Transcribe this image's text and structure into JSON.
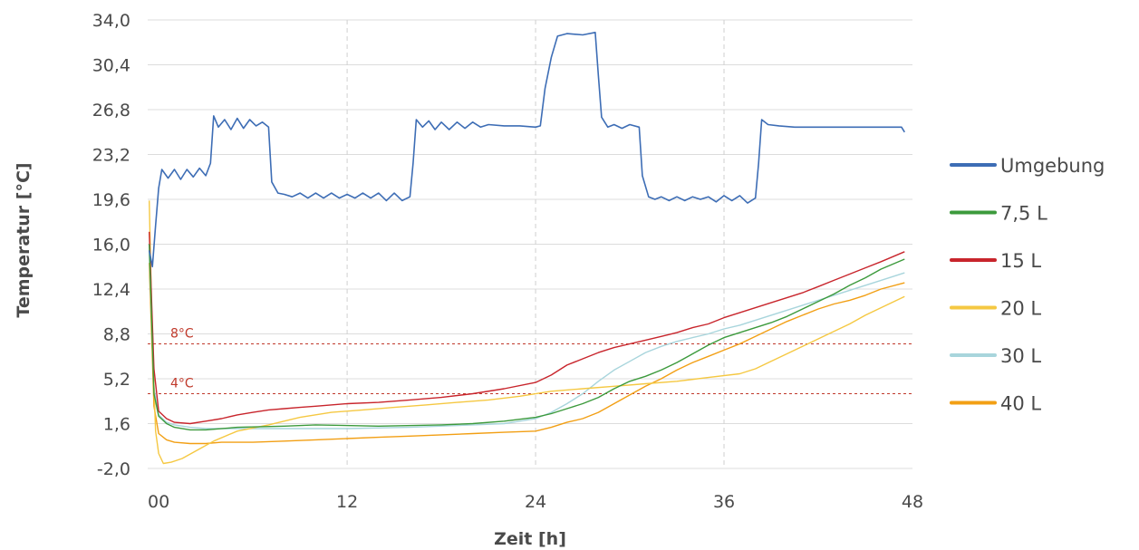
{
  "chart_data": {
    "type": "line",
    "title": "",
    "xlabel": "Zeit [h]",
    "ylabel": "Temperatur [°C]",
    "xlim": [
      -0.7,
      48
    ],
    "ylim": [
      -2.0,
      34.0
    ],
    "x_ticks": [
      0,
      12,
      24,
      36,
      48
    ],
    "x_tick_labels": [
      "00",
      "12",
      "24",
      "36",
      "48"
    ],
    "y_ticks": [
      -2.0,
      1.6,
      5.2,
      8.8,
      12.4,
      16.0,
      19.6,
      23.2,
      26.8,
      30.4,
      34.0
    ],
    "y_tick_labels": [
      "-2,0",
      "1,6",
      "5,2",
      "8,8",
      "12,4",
      "16,0",
      "19,6",
      "23,2",
      "26,8",
      "30,4",
      "34,0"
    ],
    "grid": "vertical dashed gridlines at x ticks, horizontal solid gridlines at y ticks",
    "legend_position": "right",
    "reference_lines": [
      {
        "label": "8°C",
        "y": 8.0,
        "color": "#c0392b"
      },
      {
        "label": "4°C",
        "y": 4.0,
        "color": "#c0392b"
      }
    ],
    "series": [
      {
        "name": "Umgebung",
        "color": "#3d6db5",
        "width": 1.6,
        "points": [
          [
            -0.6,
            15.5
          ],
          [
            -0.4,
            14.2
          ],
          [
            -0.2,
            17.5
          ],
          [
            0.0,
            20.5
          ],
          [
            0.2,
            22.0
          ],
          [
            0.6,
            21.3
          ],
          [
            1.0,
            22.0
          ],
          [
            1.4,
            21.2
          ],
          [
            1.8,
            22.0
          ],
          [
            2.2,
            21.4
          ],
          [
            2.6,
            22.1
          ],
          [
            3.0,
            21.5
          ],
          [
            3.3,
            22.5
          ],
          [
            3.5,
            26.3
          ],
          [
            3.8,
            25.4
          ],
          [
            4.2,
            26.0
          ],
          [
            4.6,
            25.2
          ],
          [
            5.0,
            26.1
          ],
          [
            5.4,
            25.3
          ],
          [
            5.8,
            26.0
          ],
          [
            6.2,
            25.5
          ],
          [
            6.6,
            25.8
          ],
          [
            7.0,
            25.4
          ],
          [
            7.2,
            21.0
          ],
          [
            7.6,
            20.1
          ],
          [
            8.0,
            20.0
          ],
          [
            8.5,
            19.8
          ],
          [
            9.0,
            20.1
          ],
          [
            9.5,
            19.7
          ],
          [
            10.0,
            20.1
          ],
          [
            10.5,
            19.7
          ],
          [
            11.0,
            20.1
          ],
          [
            11.5,
            19.7
          ],
          [
            12.0,
            20.0
          ],
          [
            12.5,
            19.7
          ],
          [
            13.0,
            20.1
          ],
          [
            13.5,
            19.7
          ],
          [
            14.0,
            20.1
          ],
          [
            14.5,
            19.5
          ],
          [
            15.0,
            20.1
          ],
          [
            15.5,
            19.5
          ],
          [
            16.0,
            19.8
          ],
          [
            16.2,
            22.5
          ],
          [
            16.4,
            26.0
          ],
          [
            16.8,
            25.4
          ],
          [
            17.2,
            25.9
          ],
          [
            17.6,
            25.2
          ],
          [
            18.0,
            25.8
          ],
          [
            18.5,
            25.2
          ],
          [
            19.0,
            25.8
          ],
          [
            19.5,
            25.3
          ],
          [
            20.0,
            25.8
          ],
          [
            20.5,
            25.4
          ],
          [
            21.0,
            25.6
          ],
          [
            22.0,
            25.5
          ],
          [
            23.0,
            25.5
          ],
          [
            24.0,
            25.4
          ],
          [
            24.3,
            25.5
          ],
          [
            24.6,
            28.5
          ],
          [
            25.0,
            31.0
          ],
          [
            25.4,
            32.7
          ],
          [
            26.0,
            32.9
          ],
          [
            27.0,
            32.8
          ],
          [
            27.8,
            33.0
          ],
          [
            28.0,
            29.5
          ],
          [
            28.2,
            26.2
          ],
          [
            28.6,
            25.4
          ],
          [
            29.0,
            25.6
          ],
          [
            29.5,
            25.3
          ],
          [
            30.0,
            25.6
          ],
          [
            30.6,
            25.4
          ],
          [
            30.8,
            21.5
          ],
          [
            31.2,
            19.8
          ],
          [
            31.6,
            19.6
          ],
          [
            32.0,
            19.8
          ],
          [
            32.5,
            19.5
          ],
          [
            33.0,
            19.8
          ],
          [
            33.5,
            19.5
          ],
          [
            34.0,
            19.8
          ],
          [
            34.5,
            19.6
          ],
          [
            35.0,
            19.8
          ],
          [
            35.5,
            19.4
          ],
          [
            36.0,
            19.9
          ],
          [
            36.5,
            19.5
          ],
          [
            37.0,
            19.9
          ],
          [
            37.5,
            19.3
          ],
          [
            38.0,
            19.7
          ],
          [
            38.2,
            22.5
          ],
          [
            38.4,
            26.0
          ],
          [
            38.8,
            25.6
          ],
          [
            39.5,
            25.5
          ],
          [
            40.5,
            25.4
          ],
          [
            42.0,
            25.4
          ],
          [
            44.0,
            25.4
          ],
          [
            46.0,
            25.4
          ],
          [
            47.3,
            25.4
          ],
          [
            47.5,
            25.0
          ]
        ]
      },
      {
        "name": "7,5 L",
        "color": "#3c9a3c",
        "width": 1.4,
        "points": [
          [
            -0.6,
            16.0
          ],
          [
            -0.3,
            4.0
          ],
          [
            0.0,
            2.2
          ],
          [
            0.5,
            1.6
          ],
          [
            1.0,
            1.3
          ],
          [
            2.0,
            1.1
          ],
          [
            3.0,
            1.1
          ],
          [
            5.0,
            1.3
          ],
          [
            8.0,
            1.4
          ],
          [
            10.0,
            1.5
          ],
          [
            14.0,
            1.4
          ],
          [
            18.0,
            1.5
          ],
          [
            20.0,
            1.6
          ],
          [
            22.0,
            1.8
          ],
          [
            24.0,
            2.1
          ],
          [
            25.0,
            2.4
          ],
          [
            26.0,
            2.8
          ],
          [
            27.0,
            3.2
          ],
          [
            28.0,
            3.7
          ],
          [
            29.0,
            4.4
          ],
          [
            30.0,
            5.0
          ],
          [
            31.0,
            5.4
          ],
          [
            32.0,
            5.9
          ],
          [
            33.0,
            6.5
          ],
          [
            34.0,
            7.2
          ],
          [
            35.0,
            7.9
          ],
          [
            36.0,
            8.5
          ],
          [
            37.0,
            8.9
          ],
          [
            38.0,
            9.3
          ],
          [
            39.0,
            9.7
          ],
          [
            40.0,
            10.2
          ],
          [
            41.0,
            10.8
          ],
          [
            42.0,
            11.4
          ],
          [
            43.0,
            12.0
          ],
          [
            44.0,
            12.7
          ],
          [
            45.0,
            13.3
          ],
          [
            46.0,
            14.0
          ],
          [
            47.5,
            14.8
          ]
        ]
      },
      {
        "name": "15 L",
        "color": "#c8252c",
        "width": 1.4,
        "points": [
          [
            -0.6,
            17.0
          ],
          [
            -0.3,
            6.0
          ],
          [
            0.0,
            2.6
          ],
          [
            0.5,
            2.0
          ],
          [
            1.0,
            1.7
          ],
          [
            2.0,
            1.6
          ],
          [
            3.0,
            1.8
          ],
          [
            4.0,
            2.0
          ],
          [
            5.0,
            2.3
          ],
          [
            6.0,
            2.5
          ],
          [
            7.0,
            2.7
          ],
          [
            8.0,
            2.8
          ],
          [
            9.0,
            2.9
          ],
          [
            10.0,
            3.0
          ],
          [
            12.0,
            3.2
          ],
          [
            14.0,
            3.3
          ],
          [
            16.0,
            3.5
          ],
          [
            18.0,
            3.7
          ],
          [
            20.0,
            4.0
          ],
          [
            22.0,
            4.4
          ],
          [
            24.0,
            4.9
          ],
          [
            25.0,
            5.5
          ],
          [
            26.0,
            6.3
          ],
          [
            27.0,
            6.8
          ],
          [
            28.0,
            7.3
          ],
          [
            29.0,
            7.7
          ],
          [
            30.0,
            8.0
          ],
          [
            31.0,
            8.3
          ],
          [
            32.0,
            8.6
          ],
          [
            33.0,
            8.9
          ],
          [
            34.0,
            9.3
          ],
          [
            35.0,
            9.6
          ],
          [
            36.0,
            10.1
          ],
          [
            37.0,
            10.5
          ],
          [
            38.0,
            10.9
          ],
          [
            39.0,
            11.3
          ],
          [
            40.0,
            11.7
          ],
          [
            41.0,
            12.1
          ],
          [
            42.0,
            12.6
          ],
          [
            43.0,
            13.1
          ],
          [
            44.0,
            13.6
          ],
          [
            45.0,
            14.1
          ],
          [
            46.0,
            14.6
          ],
          [
            47.5,
            15.4
          ]
        ]
      },
      {
        "name": "20 L",
        "color": "#f5c842",
        "width": 1.4,
        "points": [
          [
            -0.6,
            19.5
          ],
          [
            -0.4,
            8.0
          ],
          [
            -0.2,
            1.0
          ],
          [
            0.0,
            -0.8
          ],
          [
            0.3,
            -1.6
          ],
          [
            0.8,
            -1.5
          ],
          [
            1.5,
            -1.2
          ],
          [
            2.5,
            -0.5
          ],
          [
            3.5,
            0.2
          ],
          [
            5.0,
            1.0
          ],
          [
            7.0,
            1.5
          ],
          [
            9.0,
            2.1
          ],
          [
            11.0,
            2.5
          ],
          [
            13.0,
            2.7
          ],
          [
            15.0,
            2.9
          ],
          [
            17.0,
            3.1
          ],
          [
            19.0,
            3.3
          ],
          [
            21.0,
            3.5
          ],
          [
            23.0,
            3.8
          ],
          [
            25.0,
            4.2
          ],
          [
            27.0,
            4.4
          ],
          [
            29.0,
            4.6
          ],
          [
            31.0,
            4.8
          ],
          [
            33.0,
            5.0
          ],
          [
            35.0,
            5.3
          ],
          [
            37.0,
            5.6
          ],
          [
            38.0,
            6.0
          ],
          [
            39.0,
            6.6
          ],
          [
            40.0,
            7.2
          ],
          [
            41.0,
            7.8
          ],
          [
            42.0,
            8.4
          ],
          [
            43.0,
            9.0
          ],
          [
            44.0,
            9.6
          ],
          [
            45.0,
            10.3
          ],
          [
            46.0,
            10.9
          ],
          [
            47.5,
            11.8
          ]
        ]
      },
      {
        "name": "30 L",
        "color": "#a8d5dc",
        "width": 1.4,
        "points": [
          [
            -0.6,
            15.5
          ],
          [
            -0.3,
            4.5
          ],
          [
            0.0,
            2.3
          ],
          [
            0.5,
            1.7
          ],
          [
            1.0,
            1.5
          ],
          [
            2.0,
            1.3
          ],
          [
            3.0,
            1.2
          ],
          [
            5.0,
            1.2
          ],
          [
            8.0,
            1.2
          ],
          [
            12.0,
            1.2
          ],
          [
            16.0,
            1.3
          ],
          [
            20.0,
            1.5
          ],
          [
            22.0,
            1.6
          ],
          [
            23.0,
            1.8
          ],
          [
            24.0,
            2.0
          ],
          [
            25.0,
            2.5
          ],
          [
            26.0,
            3.2
          ],
          [
            27.0,
            4.0
          ],
          [
            28.0,
            5.0
          ],
          [
            29.0,
            5.9
          ],
          [
            30.0,
            6.6
          ],
          [
            31.0,
            7.3
          ],
          [
            32.0,
            7.8
          ],
          [
            33.0,
            8.2
          ],
          [
            34.0,
            8.5
          ],
          [
            35.0,
            8.8
          ],
          [
            36.0,
            9.2
          ],
          [
            37.0,
            9.5
          ],
          [
            38.0,
            9.9
          ],
          [
            39.0,
            10.3
          ],
          [
            40.0,
            10.7
          ],
          [
            41.0,
            11.1
          ],
          [
            42.0,
            11.5
          ],
          [
            43.0,
            11.9
          ],
          [
            44.0,
            12.3
          ],
          [
            45.0,
            12.7
          ],
          [
            46.0,
            13.1
          ],
          [
            47.5,
            13.7
          ]
        ]
      },
      {
        "name": "40 L",
        "color": "#f29f14",
        "width": 1.4,
        "points": [
          [
            -0.6,
            14.5
          ],
          [
            -0.3,
            3.0
          ],
          [
            0.0,
            0.8
          ],
          [
            0.5,
            0.3
          ],
          [
            1.0,
            0.1
          ],
          [
            2.0,
            0.0
          ],
          [
            3.0,
            0.0
          ],
          [
            4.0,
            0.1
          ],
          [
            6.0,
            0.1
          ],
          [
            8.0,
            0.2
          ],
          [
            10.0,
            0.3
          ],
          [
            12.0,
            0.4
          ],
          [
            14.0,
            0.5
          ],
          [
            16.0,
            0.6
          ],
          [
            18.0,
            0.7
          ],
          [
            20.0,
            0.8
          ],
          [
            22.0,
            0.9
          ],
          [
            24.0,
            1.0
          ],
          [
            25.0,
            1.3
          ],
          [
            26.0,
            1.7
          ],
          [
            27.0,
            2.0
          ],
          [
            28.0,
            2.5
          ],
          [
            29.0,
            3.2
          ],
          [
            30.0,
            3.9
          ],
          [
            31.0,
            4.6
          ],
          [
            32.0,
            5.2
          ],
          [
            33.0,
            5.9
          ],
          [
            34.0,
            6.5
          ],
          [
            35.0,
            7.0
          ],
          [
            36.0,
            7.5
          ],
          [
            37.0,
            8.0
          ],
          [
            38.0,
            8.6
          ],
          [
            39.0,
            9.2
          ],
          [
            40.0,
            9.8
          ],
          [
            41.0,
            10.3
          ],
          [
            42.0,
            10.8
          ],
          [
            43.0,
            11.2
          ],
          [
            44.0,
            11.5
          ],
          [
            45.0,
            11.9
          ],
          [
            46.0,
            12.4
          ],
          [
            47.5,
            12.9
          ]
        ]
      }
    ]
  }
}
